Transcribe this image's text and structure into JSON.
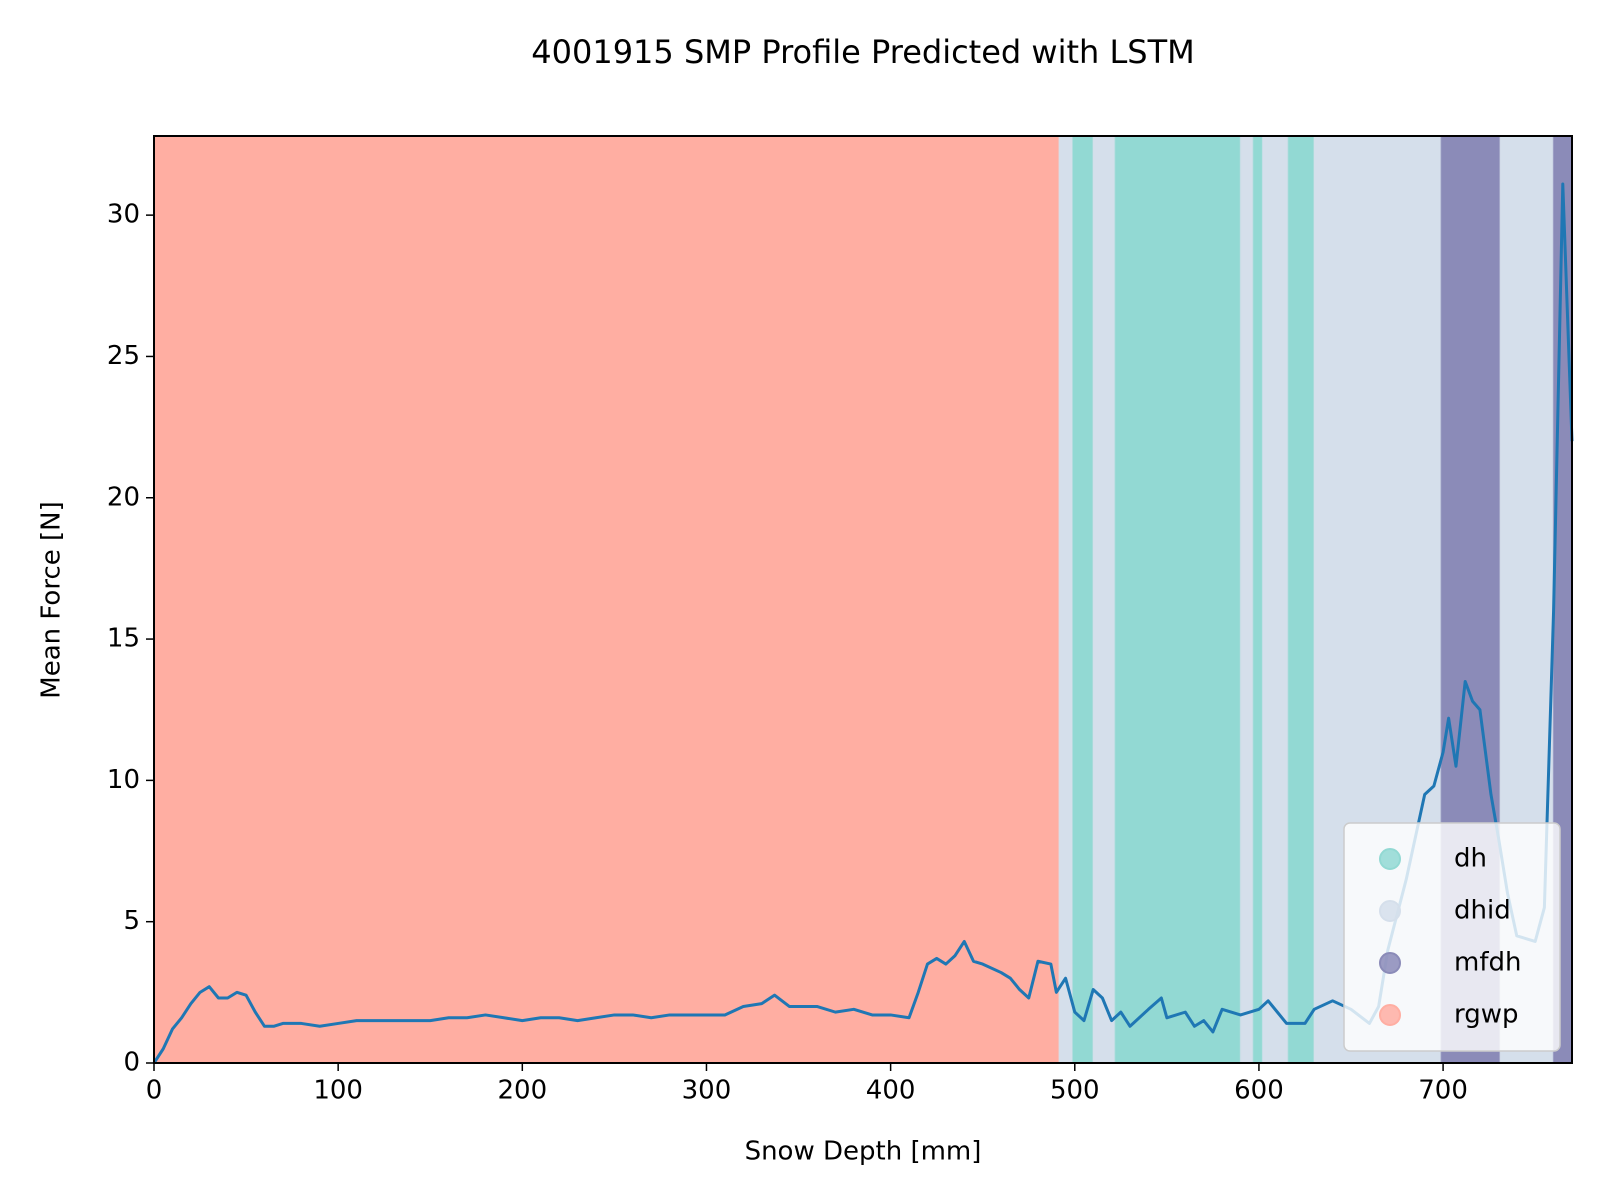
{
  "chart_data": {
    "type": "line",
    "title": "4001915 SMP Profile Predicted with LSTM",
    "xlabel": "Snow Depth [mm]",
    "ylabel": "Mean Force [N]",
    "xlim": [
      0,
      770
    ],
    "ylim": [
      0,
      32.8
    ],
    "xticks": [
      0,
      100,
      200,
      300,
      400,
      500,
      600,
      700
    ],
    "yticks": [
      0,
      5,
      10,
      15,
      20,
      25,
      30
    ],
    "color": "#1f77b4",
    "x": [
      0,
      5,
      10,
      15,
      20,
      25,
      30,
      35,
      40,
      45,
      50,
      55,
      60,
      65,
      70,
      80,
      90,
      100,
      110,
      120,
      130,
      140,
      150,
      160,
      170,
      180,
      190,
      200,
      210,
      220,
      230,
      240,
      250,
      260,
      270,
      280,
      290,
      300,
      310,
      320,
      330,
      337,
      345,
      360,
      370,
      380,
      390,
      400,
      410,
      415,
      420,
      425,
      430,
      435,
      440,
      445,
      450,
      460,
      465,
      470,
      475,
      480,
      487,
      490,
      495,
      500,
      505,
      510,
      515,
      520,
      525,
      530,
      540,
      547,
      550,
      560,
      565,
      570,
      575,
      580,
      590,
      600,
      605,
      610,
      615,
      625,
      630,
      640,
      650,
      660,
      665,
      670,
      680,
      690,
      695,
      700,
      703,
      707,
      712,
      716,
      720,
      726,
      730,
      735,
      740,
      750,
      755,
      760,
      765,
      770
    ],
    "values": [
      0,
      0.5,
      1.2,
      1.6,
      2.1,
      2.5,
      2.7,
      2.3,
      2.3,
      2.5,
      2.4,
      1.8,
      1.3,
      1.3,
      1.4,
      1.4,
      1.3,
      1.4,
      1.5,
      1.5,
      1.5,
      1.5,
      1.5,
      1.6,
      1.6,
      1.7,
      1.6,
      1.5,
      1.6,
      1.6,
      1.5,
      1.6,
      1.7,
      1.7,
      1.6,
      1.7,
      1.7,
      1.7,
      1.7,
      2.0,
      2.1,
      2.4,
      2.0,
      2.0,
      1.8,
      1.9,
      1.7,
      1.7,
      1.6,
      2.5,
      3.5,
      3.7,
      3.5,
      3.8,
      4.3,
      3.6,
      3.5,
      3.2,
      3.0,
      2.6,
      2.3,
      3.6,
      3.5,
      2.5,
      3.0,
      1.8,
      1.5,
      2.6,
      2.3,
      1.5,
      1.8,
      1.3,
      1.9,
      2.3,
      1.6,
      1.8,
      1.3,
      1.5,
      1.1,
      1.9,
      1.7,
      1.9,
      2.2,
      1.8,
      1.4,
      1.4,
      1.9,
      2.2,
      1.9,
      1.4,
      2.0,
      4.0,
      6.5,
      9.5,
      9.8,
      11.0,
      12.2,
      10.5,
      13.5,
      12.8,
      12.5,
      9.5,
      8.0,
      6.0,
      4.5,
      4.3,
      5.5,
      16.0,
      31.1,
      22.0
    ],
    "legend": [
      {
        "name": "dh",
        "color": "#92d9d3"
      },
      {
        "name": "dhid",
        "color": "#d5dfeb"
      },
      {
        "name": "mfdh",
        "color": "#8b8bb8"
      },
      {
        "name": "rgwp",
        "color": "#ffaea2"
      }
    ],
    "legend_loc": "lower right",
    "segments": [
      {
        "start": 0,
        "end": 491.5,
        "layer": "rgwp"
      },
      {
        "start": 491.5,
        "end": 499,
        "layer": "dhid"
      },
      {
        "start": 499,
        "end": 510,
        "layer": "dh"
      },
      {
        "start": 510,
        "end": 522,
        "layer": "dhid"
      },
      {
        "start": 522,
        "end": 590,
        "layer": "dh"
      },
      {
        "start": 590,
        "end": 597,
        "layer": "dhid"
      },
      {
        "start": 597,
        "end": 602,
        "layer": "dh"
      },
      {
        "start": 602,
        "end": 616,
        "layer": "dhid"
      },
      {
        "start": 616,
        "end": 630,
        "layer": "dh"
      },
      {
        "start": 630,
        "end": 699,
        "layer": "dhid"
      },
      {
        "start": 699,
        "end": 731,
        "layer": "mfdh"
      },
      {
        "start": 731,
        "end": 760,
        "layer": "dhid"
      },
      {
        "start": 760,
        "end": 770,
        "layer": "mfdh"
      }
    ]
  }
}
